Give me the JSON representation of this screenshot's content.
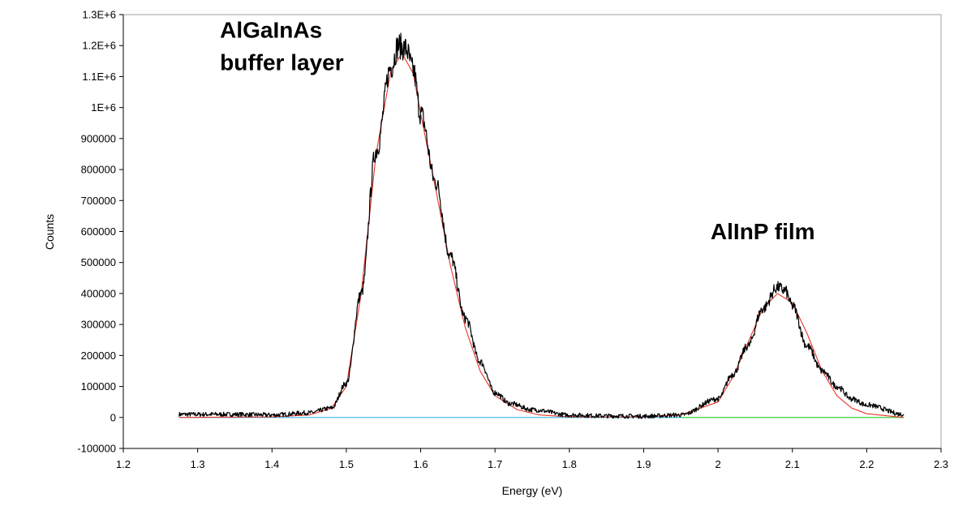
{
  "chart_data": {
    "type": "line",
    "xlabel": "Energy (eV)",
    "ylabel": "Counts",
    "xlim": [
      1.2,
      2.3
    ],
    "ylim": [
      -100000,
      1300000
    ],
    "x_ticks": [
      1.2,
      1.3,
      1.4,
      1.5,
      1.6,
      1.7,
      1.8,
      1.9,
      2.0,
      2.1,
      2.2,
      2.3
    ],
    "x_tick_labels": [
      "1.2",
      "1.3",
      "1.4",
      "1.5",
      "1.6",
      "1.7",
      "1.8",
      "1.9",
      "2",
      "2.1",
      "2.2",
      "2.3"
    ],
    "y_ticks": [
      -100000,
      0,
      100000,
      200000,
      300000,
      400000,
      500000,
      600000,
      700000,
      800000,
      900000,
      1000000,
      1100000,
      1200000,
      1300000
    ],
    "y_tick_labels": [
      "-100000",
      "0",
      "100000",
      "200000",
      "300000",
      "400000",
      "500000",
      "600000",
      "700000",
      "800000",
      "900000",
      "1E+6",
      "1.1E+6",
      "1.2E+6",
      "1.3E+6"
    ],
    "grid": false,
    "series": [
      {
        "color": "#000000",
        "x": [
          1.275,
          1.3,
          1.35,
          1.4,
          1.45,
          1.48,
          1.5,
          1.52,
          1.54,
          1.56,
          1.57,
          1.58,
          1.59,
          1.6,
          1.62,
          1.64,
          1.66,
          1.68,
          1.7,
          1.72,
          1.75,
          1.8,
          1.85,
          1.9,
          1.95,
          2.0,
          2.02,
          2.04,
          2.06,
          2.08,
          2.09,
          2.1,
          2.12,
          2.14,
          2.16,
          2.18,
          2.2,
          2.25
        ],
        "y": [
          10000,
          10000,
          10000,
          8000,
          15000,
          30000,
          110000,
          400000,
          860000,
          1130000,
          1200000,
          1190000,
          1120000,
          980000,
          760000,
          520000,
          320000,
          180000,
          80000,
          45000,
          25000,
          8000,
          5000,
          4000,
          8000,
          60000,
          140000,
          230000,
          350000,
          420000,
          410000,
          360000,
          230000,
          150000,
          100000,
          60000,
          40000,
          10000
        ]
      },
      {
        "color": "#e8352a",
        "x": [
          1.275,
          1.4,
          1.45,
          1.48,
          1.5,
          1.52,
          1.54,
          1.56,
          1.575,
          1.59,
          1.6,
          1.62,
          1.64,
          1.66,
          1.68,
          1.7,
          1.73,
          1.76,
          1.8,
          1.9,
          1.95,
          2.0,
          2.02,
          2.04,
          2.06,
          2.08,
          2.1,
          2.12,
          2.14,
          2.16,
          2.18,
          2.2,
          2.25
        ],
        "y": [
          0,
          2000,
          8000,
          30000,
          100000,
          400000,
          850000,
          1120000,
          1175000,
          1110000,
          980000,
          740000,
          490000,
          290000,
          150000,
          70000,
          25000,
          8000,
          2000,
          2000,
          8000,
          50000,
          130000,
          240000,
          350000,
          400000,
          370000,
          270000,
          150000,
          70000,
          30000,
          12000,
          0
        ]
      },
      {
        "color": "#3ab5e6",
        "x": [
          1.275,
          1.95
        ],
        "y": [
          0,
          0
        ]
      },
      {
        "color": "#22cc22",
        "x": [
          1.95,
          2.25
        ],
        "y": [
          0,
          0
        ]
      }
    ],
    "annotations": [
      {
        "lines": [
          "AlGaInAs",
          "buffer layer"
        ],
        "x": 1.33,
        "y": 1225000
      },
      {
        "lines": [
          "AlInP film"
        ],
        "x": 1.99,
        "y": 575000
      }
    ]
  }
}
